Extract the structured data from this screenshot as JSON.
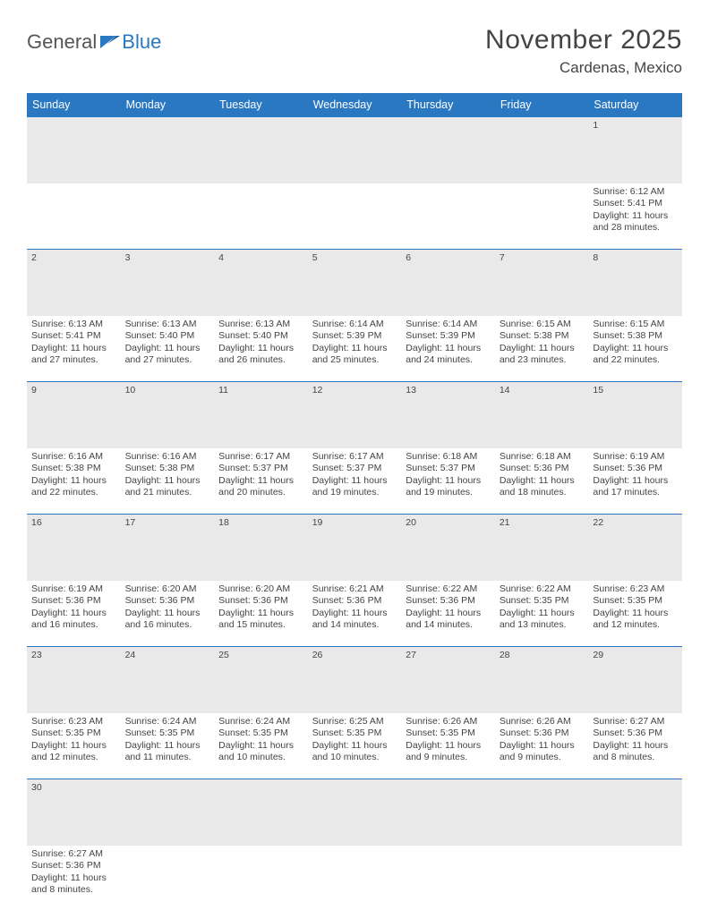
{
  "brand": {
    "part1": "General",
    "part2": "Blue"
  },
  "header": {
    "month": "November 2025",
    "location": "Cardenas, Mexico"
  },
  "colors": {
    "accent": "#2b78c2",
    "header_bg": "#2b78c2",
    "band": "#e9e9e9",
    "text": "#444"
  },
  "weekdays": [
    "Sunday",
    "Monday",
    "Tuesday",
    "Wednesday",
    "Thursday",
    "Friday",
    "Saturday"
  ],
  "weeks": [
    [
      null,
      null,
      null,
      null,
      null,
      null,
      {
        "n": "1",
        "sr": "Sunrise: 6:12 AM",
        "ss": "Sunset: 5:41 PM",
        "dl": "Daylight: 11 hours and 28 minutes."
      }
    ],
    [
      {
        "n": "2",
        "sr": "Sunrise: 6:13 AM",
        "ss": "Sunset: 5:41 PM",
        "dl": "Daylight: 11 hours and 27 minutes."
      },
      {
        "n": "3",
        "sr": "Sunrise: 6:13 AM",
        "ss": "Sunset: 5:40 PM",
        "dl": "Daylight: 11 hours and 27 minutes."
      },
      {
        "n": "4",
        "sr": "Sunrise: 6:13 AM",
        "ss": "Sunset: 5:40 PM",
        "dl": "Daylight: 11 hours and 26 minutes."
      },
      {
        "n": "5",
        "sr": "Sunrise: 6:14 AM",
        "ss": "Sunset: 5:39 PM",
        "dl": "Daylight: 11 hours and 25 minutes."
      },
      {
        "n": "6",
        "sr": "Sunrise: 6:14 AM",
        "ss": "Sunset: 5:39 PM",
        "dl": "Daylight: 11 hours and 24 minutes."
      },
      {
        "n": "7",
        "sr": "Sunrise: 6:15 AM",
        "ss": "Sunset: 5:38 PM",
        "dl": "Daylight: 11 hours and 23 minutes."
      },
      {
        "n": "8",
        "sr": "Sunrise: 6:15 AM",
        "ss": "Sunset: 5:38 PM",
        "dl": "Daylight: 11 hours and 22 minutes."
      }
    ],
    [
      {
        "n": "9",
        "sr": "Sunrise: 6:16 AM",
        "ss": "Sunset: 5:38 PM",
        "dl": "Daylight: 11 hours and 22 minutes."
      },
      {
        "n": "10",
        "sr": "Sunrise: 6:16 AM",
        "ss": "Sunset: 5:38 PM",
        "dl": "Daylight: 11 hours and 21 minutes."
      },
      {
        "n": "11",
        "sr": "Sunrise: 6:17 AM",
        "ss": "Sunset: 5:37 PM",
        "dl": "Daylight: 11 hours and 20 minutes."
      },
      {
        "n": "12",
        "sr": "Sunrise: 6:17 AM",
        "ss": "Sunset: 5:37 PM",
        "dl": "Daylight: 11 hours and 19 minutes."
      },
      {
        "n": "13",
        "sr": "Sunrise: 6:18 AM",
        "ss": "Sunset: 5:37 PM",
        "dl": "Daylight: 11 hours and 19 minutes."
      },
      {
        "n": "14",
        "sr": "Sunrise: 6:18 AM",
        "ss": "Sunset: 5:36 PM",
        "dl": "Daylight: 11 hours and 18 minutes."
      },
      {
        "n": "15",
        "sr": "Sunrise: 6:19 AM",
        "ss": "Sunset: 5:36 PM",
        "dl": "Daylight: 11 hours and 17 minutes."
      }
    ],
    [
      {
        "n": "16",
        "sr": "Sunrise: 6:19 AM",
        "ss": "Sunset: 5:36 PM",
        "dl": "Daylight: 11 hours and 16 minutes."
      },
      {
        "n": "17",
        "sr": "Sunrise: 6:20 AM",
        "ss": "Sunset: 5:36 PM",
        "dl": "Daylight: 11 hours and 16 minutes."
      },
      {
        "n": "18",
        "sr": "Sunrise: 6:20 AM",
        "ss": "Sunset: 5:36 PM",
        "dl": "Daylight: 11 hours and 15 minutes."
      },
      {
        "n": "19",
        "sr": "Sunrise: 6:21 AM",
        "ss": "Sunset: 5:36 PM",
        "dl": "Daylight: 11 hours and 14 minutes."
      },
      {
        "n": "20",
        "sr": "Sunrise: 6:22 AM",
        "ss": "Sunset: 5:36 PM",
        "dl": "Daylight: 11 hours and 14 minutes."
      },
      {
        "n": "21",
        "sr": "Sunrise: 6:22 AM",
        "ss": "Sunset: 5:35 PM",
        "dl": "Daylight: 11 hours and 13 minutes."
      },
      {
        "n": "22",
        "sr": "Sunrise: 6:23 AM",
        "ss": "Sunset: 5:35 PM",
        "dl": "Daylight: 11 hours and 12 minutes."
      }
    ],
    [
      {
        "n": "23",
        "sr": "Sunrise: 6:23 AM",
        "ss": "Sunset: 5:35 PM",
        "dl": "Daylight: 11 hours and 12 minutes."
      },
      {
        "n": "24",
        "sr": "Sunrise: 6:24 AM",
        "ss": "Sunset: 5:35 PM",
        "dl": "Daylight: 11 hours and 11 minutes."
      },
      {
        "n": "25",
        "sr": "Sunrise: 6:24 AM",
        "ss": "Sunset: 5:35 PM",
        "dl": "Daylight: 11 hours and 10 minutes."
      },
      {
        "n": "26",
        "sr": "Sunrise: 6:25 AM",
        "ss": "Sunset: 5:35 PM",
        "dl": "Daylight: 11 hours and 10 minutes."
      },
      {
        "n": "27",
        "sr": "Sunrise: 6:26 AM",
        "ss": "Sunset: 5:35 PM",
        "dl": "Daylight: 11 hours and 9 minutes."
      },
      {
        "n": "28",
        "sr": "Sunrise: 6:26 AM",
        "ss": "Sunset: 5:36 PM",
        "dl": "Daylight: 11 hours and 9 minutes."
      },
      {
        "n": "29",
        "sr": "Sunrise: 6:27 AM",
        "ss": "Sunset: 5:36 PM",
        "dl": "Daylight: 11 hours and 8 minutes."
      }
    ],
    [
      {
        "n": "30",
        "sr": "Sunrise: 6:27 AM",
        "ss": "Sunset: 5:36 PM",
        "dl": "Daylight: 11 hours and 8 minutes."
      },
      null,
      null,
      null,
      null,
      null,
      null
    ]
  ]
}
